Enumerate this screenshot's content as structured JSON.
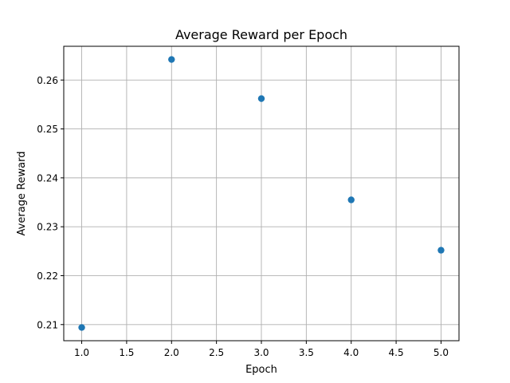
{
  "chart_data": {
    "type": "scatter",
    "title": "Average Reward per Epoch",
    "xlabel": "Epoch",
    "ylabel": "Average Reward",
    "xlim": [
      0.8,
      5.2
    ],
    "ylim": [
      0.2067,
      0.2669
    ],
    "xticks": [
      1.0,
      1.5,
      2.0,
      2.5,
      3.0,
      3.5,
      4.0,
      4.5,
      5.0
    ],
    "xtick_labels": [
      "1.0",
      "1.5",
      "2.0",
      "2.5",
      "3.0",
      "3.5",
      "4.0",
      "4.5",
      "5.0"
    ],
    "yticks": [
      0.21,
      0.22,
      0.23,
      0.24,
      0.25,
      0.26
    ],
    "ytick_labels": [
      "0.21",
      "0.22",
      "0.23",
      "0.24",
      "0.25",
      "0.26"
    ],
    "grid": true,
    "marker_color": "#1f77b4",
    "x": [
      1,
      2,
      3,
      4,
      5
    ],
    "y": [
      0.2094,
      0.2642,
      0.2562,
      0.2355,
      0.2252
    ]
  }
}
